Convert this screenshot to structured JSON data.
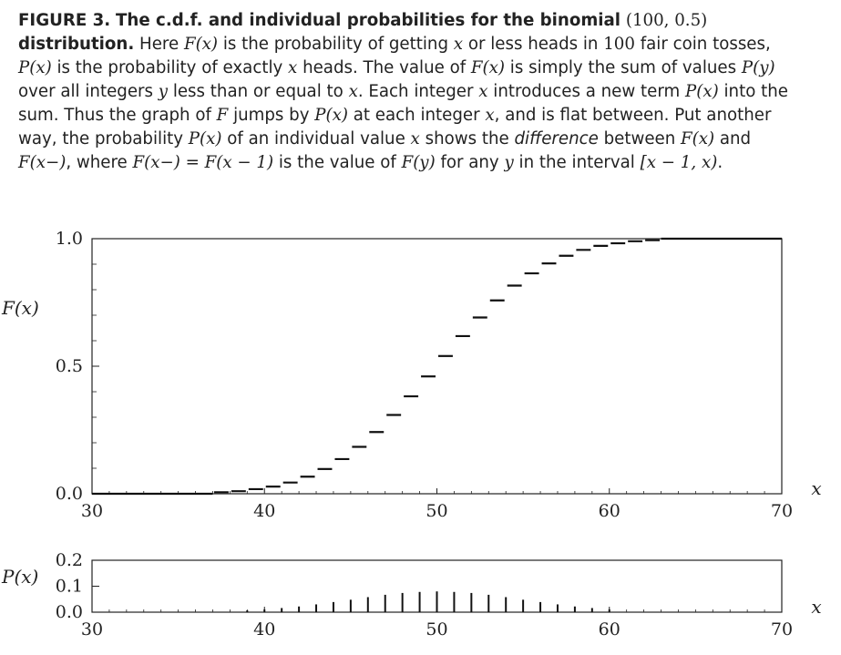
{
  "caption": {
    "label": "FIGURE 3.",
    "bold_title_a": "The c.d.f. and individual probabilities for the binomial",
    "bold_title_params": "(100, 0.5)",
    "bold_title_b": "distribution.",
    "s1": " Here",
    "s2": "F(x)",
    "s3": " is the probability of getting ",
    "s4": "x",
    "s5": " or less heads in ",
    "s6": "100",
    "s7": " fair coin tosses, ",
    "s8": "P(x)",
    "s9": " is the probability of exactly ",
    "s10": "x",
    "s11": " heads. The value of ",
    "s12": "F(x)",
    "s13": " is simply the sum of values ",
    "s14": "P(y)",
    "s15": " over all integers ",
    "s16": "y",
    "s17": " less than or equal to ",
    "s18": "x",
    "s19": ". Each integer ",
    "s20": "x",
    "s21": " introduces a new term ",
    "s22": "P(x)",
    "s23": " into the sum. Thus the graph of ",
    "s24": "F",
    "s25": " jumps by ",
    "s26": "P(x)",
    "s27": " at each integer ",
    "s28": "x",
    "s29": ", and is flat between. Put another way, the probability ",
    "s30": "P(x)",
    "s31": " of an individual value ",
    "s32": "x",
    "s33": " shows the ",
    "s34": "difference",
    "s35": " between ",
    "s36": "F(x)",
    "s37": " and ",
    "s38": "F(x−)",
    "s39": ", where ",
    "s40": "F(x−) = F(x − 1)",
    "s41": " is the value of ",
    "s42": "F(y)",
    "s43": " for any ",
    "s44": "y",
    "s45": " in the interval ",
    "s46": "[x − 1, x)",
    "s47": "."
  },
  "chart_data": [
    {
      "type": "line",
      "step": "post",
      "ylabel": "F(x)",
      "xlabel": "x",
      "xlim": [
        30,
        70
      ],
      "ylim": [
        0,
        1
      ],
      "xticks": [
        "30",
        "40",
        "50",
        "60",
        "70"
      ],
      "yticks": [
        "0.0",
        "0.5",
        "1.0"
      ],
      "x": [
        30,
        37,
        38,
        39,
        40,
        41,
        42,
        43,
        44,
        45,
        46,
        47,
        48,
        49,
        50,
        51,
        52,
        53,
        54,
        55,
        56,
        57,
        58,
        59,
        60,
        61,
        62,
        63,
        70
      ],
      "y": [
        0.0,
        0.006,
        0.01,
        0.018,
        0.028,
        0.044,
        0.067,
        0.097,
        0.136,
        0.184,
        0.242,
        0.309,
        0.382,
        0.46,
        0.54,
        0.618,
        0.691,
        0.758,
        0.816,
        0.864,
        0.903,
        0.933,
        0.956,
        0.972,
        0.982,
        0.99,
        0.994,
        1.0,
        1.0
      ]
    },
    {
      "type": "bar",
      "ylabel": "P(x)",
      "xlabel": "x",
      "xlim": [
        30,
        70
      ],
      "ylim": [
        0,
        0.2
      ],
      "xticks": [
        "30",
        "40",
        "50",
        "60",
        "70"
      ],
      "yticks": [
        "0.0",
        "0.1",
        "0.2"
      ],
      "x": [
        39,
        40,
        41,
        42,
        43,
        44,
        45,
        46,
        47,
        48,
        49,
        50,
        51,
        52,
        53,
        54,
        55,
        56,
        57,
        58,
        59,
        60
      ],
      "values": [
        0.007,
        0.011,
        0.016,
        0.022,
        0.03,
        0.039,
        0.048,
        0.058,
        0.067,
        0.074,
        0.078,
        0.08,
        0.078,
        0.074,
        0.067,
        0.058,
        0.048,
        0.039,
        0.03,
        0.022,
        0.016,
        0.011
      ]
    }
  ]
}
